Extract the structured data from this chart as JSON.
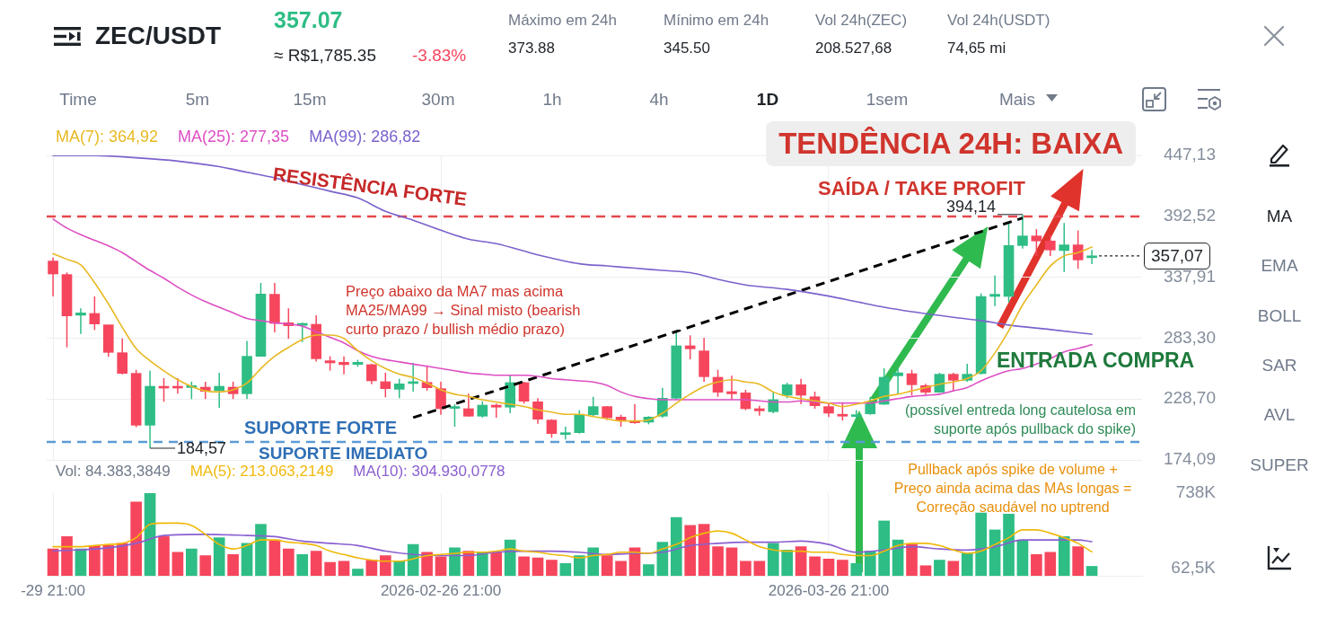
{
  "chart_data": [
    {
      "type": "other",
      "title": "ZEC/USDT",
      "annotations": [
        "357.07",
        "≈ R$1,785.35",
        "-3.83%",
        "Máximo em 24h",
        "373.88",
        "Mínimo em 24h",
        "345.50",
        "Vol 24h(ZEC)",
        "208.527,68",
        "Vol 24h(USDT)",
        "74,65 mi",
        "Time",
        "5m",
        "15m",
        "30m",
        "1h",
        "4h",
        "1D",
        "1sem",
        "Mais",
        "MA",
        "EMA",
        "BOLL",
        "SAR",
        "AVL",
        "SUPER"
      ]
    },
    {
      "type": "candlestick",
      "x": [
        "2026-01-29T21:00",
        "2026-01-30T21:00",
        "2026-01-31T21:00",
        "2026-02-01T21:00",
        "2026-02-02T21:00",
        "2026-02-03T21:00",
        "2026-02-04T21:00",
        "2026-02-05T21:00",
        "2026-02-06T21:00",
        "2026-02-07T21:00",
        "2026-02-08T21:00",
        "2026-02-09T21:00",
        "2026-02-10T21:00",
        "2026-02-11T21:00",
        "2026-02-12T21:00",
        "2026-02-13T21:00",
        "2026-02-14T21:00",
        "2026-02-15T21:00",
        "2026-02-16T21:00",
        "2026-02-17T21:00",
        "2026-02-18T21:00",
        "2026-02-19T21:00",
        "2026-02-20T21:00",
        "2026-02-21T21:00",
        "2026-02-22T21:00",
        "2026-02-23T21:00",
        "2026-02-24T21:00",
        "2026-02-25T21:00",
        "2026-02-26T21:00",
        "2026-02-27T21:00",
        "2026-02-28T21:00",
        "2026-03-01T21:00",
        "2026-03-02T21:00",
        "2026-03-03T21:00",
        "2026-03-04T21:00",
        "2026-03-05T21:00",
        "2026-03-06T21:00",
        "2026-03-07T21:00",
        "2026-03-08T21:00",
        "2026-03-09T21:00",
        "2026-03-10T21:00",
        "2026-03-11T21:00",
        "2026-03-12T21:00",
        "2026-03-13T21:00",
        "2026-03-14T21:00",
        "2026-03-15T21:00",
        "2026-03-16T21:00",
        "2026-03-17T21:00",
        "2026-03-18T21:00",
        "2026-03-19T21:00",
        "2026-03-20T21:00",
        "2026-03-21T21:00",
        "2026-03-22T21:00",
        "2026-03-23T21:00",
        "2026-03-24T21:00",
        "2026-03-25T21:00",
        "2026-03-26T21:00",
        "2026-03-27T21:00",
        "2026-03-28T21:00",
        "2026-03-29T21:00",
        "2026-03-30T21:00",
        "2026-03-31T21:00",
        "2026-04-01T21:00",
        "2026-04-02T21:00",
        "2026-04-03T21:00",
        "2026-04-04T21:00",
        "2026-04-05T21:00",
        "2026-04-06T21:00",
        "2026-04-07T21:00",
        "2026-04-08T21:00",
        "2026-04-09T21:00",
        "2026-04-10T21:00",
        "2026-04-11T21:00",
        "2026-04-12T21:00",
        "2026-04-13T21:00",
        "2026-04-14T21:00"
      ],
      "ohlc": [
        [
          352.4,
          355.6,
          320.7,
          340.8
        ],
        [
          340.3,
          342.2,
          275.0,
          303.2
        ],
        [
          303.8,
          310.0,
          287.1,
          305.9
        ],
        [
          305.4,
          320.7,
          290.6,
          296.0
        ],
        [
          295.2,
          295.2,
          266.5,
          270.5
        ],
        [
          270.2,
          283.1,
          250.9,
          251.7
        ],
        [
          251.7,
          254.9,
          203.4,
          205.2
        ],
        [
          205.2,
          254.1,
          184.57,
          240.1
        ],
        [
          240.1,
          247.4,
          226.2,
          238.5
        ],
        [
          240.1,
          247.4,
          233.4,
          238.5
        ],
        [
          239.0,
          244.2,
          228.6,
          240.7
        ],
        [
          239.3,
          244.2,
          228.6,
          235.6
        ],
        [
          236.1,
          252.2,
          220.8,
          240.1
        ],
        [
          239.3,
          244.2,
          228.6,
          233.4
        ],
        [
          233.4,
          280.9,
          228.6,
          267.0
        ],
        [
          267.0,
          332.8,
          267.0,
          322.9
        ],
        [
          322.6,
          332.8,
          288.5,
          296.5
        ],
        [
          297.1,
          310.0,
          282.6,
          294.4
        ],
        [
          294.7,
          297.1,
          279.9,
          296.5
        ],
        [
          295.7,
          303.8,
          262.2,
          264.8
        ],
        [
          263.0,
          267.0,
          254.1,
          261.1
        ],
        [
          261.6,
          267.0,
          250.9,
          259.5
        ],
        [
          259.7,
          263.8,
          257.6,
          261.6
        ],
        [
          259.5,
          260.3,
          242.0,
          245.0
        ],
        [
          244.2,
          252.2,
          230.2,
          238.0
        ],
        [
          237.4,
          246.8,
          229.4,
          242.3
        ],
        [
          242.6,
          261.1,
          235.3,
          244.2
        ],
        [
          243.6,
          258.9,
          236.1,
          238.8
        ],
        [
          238.0,
          244.2,
          214.6,
          220.0
        ],
        [
          220.3,
          224.0,
          203.9,
          221.9
        ],
        [
          220.0,
          233.4,
          212.7,
          213.3
        ],
        [
          213.3,
          226.7,
          211.9,
          223.2
        ],
        [
          223.2,
          224.6,
          211.9,
          221.4
        ],
        [
          221.4,
          250.3,
          216.0,
          243.4
        ],
        [
          243.4,
          244.2,
          224.6,
          226.7
        ],
        [
          226.2,
          229.4,
          206.6,
          210.6
        ],
        [
          209.8,
          210.6,
          194.0,
          197.7
        ],
        [
          196.9,
          203.9,
          192.4,
          198.5
        ],
        [
          198.5,
          218.7,
          197.7,
          214.6
        ],
        [
          214.6,
          230.7,
          213.3,
          221.9
        ],
        [
          221.9,
          222.5,
          210.0,
          211.9
        ],
        [
          212.5,
          214.6,
          203.9,
          209.3
        ],
        [
          209.0,
          224.0,
          206.5,
          207.4
        ],
        [
          207.9,
          213.3,
          206.0,
          212.5
        ],
        [
          213.3,
          238.8,
          211.9,
          229.4
        ],
        [
          229.4,
          289.0,
          228.1,
          276.4
        ],
        [
          276.4,
          285.8,
          264.3,
          273.7
        ],
        [
          271.8,
          283.6,
          244.2,
          248.7
        ],
        [
          248.2,
          254.9,
          230.7,
          234.8
        ],
        [
          235.3,
          249.5,
          228.1,
          233.4
        ],
        [
          234.2,
          236.9,
          218.7,
          220.0
        ],
        [
          220.0,
          222.7,
          213.8,
          218.1
        ],
        [
          217.3,
          234.8,
          216.0,
          228.1
        ],
        [
          232.1,
          243.4,
          229.4,
          241.5
        ],
        [
          241.5,
          246.8,
          224.0,
          232.1
        ],
        [
          230.7,
          235.3,
          220.0,
          222.7
        ],
        [
          221.9,
          225.4,
          212.5,
          216.0
        ],
        [
          215.0,
          224.6,
          209.3,
          213.3
        ],
        [
          213.0,
          218.7,
          210.6,
          214.6
        ],
        [
          215.4,
          230.7,
          214.6,
          224.0
        ],
        [
          224.0,
          256.2,
          223.5,
          248.2
        ],
        [
          249.5,
          256.2,
          233.4,
          252.2
        ],
        [
          251.4,
          254.9,
          232.1,
          241.5
        ],
        [
          240.7,
          242.3,
          232.6,
          234.8
        ],
        [
          234.8,
          252.2,
          234.2,
          250.9
        ],
        [
          250.9,
          252.2,
          236.1,
          245.5
        ],
        [
          245.5,
          260.3,
          244.2,
          250.9
        ],
        [
          251.4,
          323.4,
          250.9,
          320.7
        ],
        [
          320.7,
          339.5,
          312.1,
          322.6
        ],
        [
          320.7,
          386.5,
          315.3,
          366.3
        ],
        [
          366.3,
          394.14,
          363.6,
          374.9
        ],
        [
          374.9,
          381.1,
          356.9,
          370.4
        ],
        [
          370.4,
          375.7,
          356.9,
          362.3
        ],
        [
          361.8,
          386.5,
          342.7,
          366.9
        ],
        [
          366.9,
          379.8,
          345.4,
          353.4
        ],
        [
          355.4,
          362.3,
          349.7,
          357.07
        ]
      ],
      "colors": [
        "#f6465d",
        "#f6465d",
        "#2ebd85",
        "#f6465d",
        "#f6465d",
        "#f6465d",
        "#f6465d",
        "#2ebd85",
        "#f6465d",
        "#f6465d",
        "#2ebd85",
        "#f6465d",
        "#2ebd85",
        "#f6465d",
        "#2ebd85",
        "#2ebd85",
        "#f6465d",
        "#f6465d",
        "#2ebd85",
        "#f6465d",
        "#f6465d",
        "#f6465d",
        "#2ebd85",
        "#f6465d",
        "#f6465d",
        "#2ebd85",
        "#2ebd85",
        "#f6465d",
        "#f6465d",
        "#2ebd85",
        "#f6465d",
        "#2ebd85",
        "#f6465d",
        "#2ebd85",
        "#f6465d",
        "#f6465d",
        "#f6465d",
        "#2ebd85",
        "#2ebd85",
        "#2ebd85",
        "#f6465d",
        "#f6465d",
        "#f6465d",
        "#2ebd85",
        "#2ebd85",
        "#2ebd85",
        "#f6465d",
        "#f6465d",
        "#f6465d",
        "#f6465d",
        "#f6465d",
        "#f6465d",
        "#2ebd85",
        "#2ebd85",
        "#f6465d",
        "#f6465d",
        "#f6465d",
        "#f6465d",
        "#2ebd85",
        "#2ebd85",
        "#2ebd85",
        "#2ebd85",
        "#f6465d",
        "#f6465d",
        "#2ebd85",
        "#f6465d",
        "#2ebd85",
        "#2ebd85",
        "#2ebd85",
        "#2ebd85",
        "#2ebd85",
        "#f6465d",
        "#f6465d",
        "#2ebd85",
        "#f6465d",
        "#2ebd85"
      ],
      "series": [
        {
          "name": "MA(7): 364,92",
          "type": "line",
          "color": "#e8b923",
          "values": [
            359,
            354,
            349,
            333,
            314,
            293,
            274,
            263,
            254,
            246,
            240,
            236,
            235,
            237,
            243,
            256,
            267,
            275,
            282,
            286,
            286,
            283,
            272,
            263,
            256,
            251,
            248,
            243,
            237,
            233,
            231,
            228,
            226,
            224,
            222,
            219,
            217,
            215,
            215,
            213,
            211,
            209,
            209,
            210,
            216,
            225,
            233,
            240,
            244,
            246,
            244,
            242,
            235,
            231,
            229,
            227,
            225,
            222,
            224,
            227,
            231,
            233,
            236,
            239,
            242,
            244,
            247,
            254,
            270,
            290,
            313,
            331,
            348,
            357,
            360,
            364.92
          ]
        },
        {
          "name": "MA(25): 277,35",
          "type": "line",
          "color": "#dd4fc4",
          "values": [
            390,
            382,
            376,
            371,
            366,
            360,
            352,
            344,
            337,
            329,
            322,
            316,
            311,
            306,
            301,
            299,
            297,
            296,
            294,
            289,
            284,
            279,
            272,
            267,
            264,
            262,
            260,
            258,
            256,
            254,
            252,
            251,
            250,
            250,
            250,
            249,
            247,
            246,
            245,
            244,
            241,
            235,
            231,
            229,
            228,
            228,
            228,
            228,
            228,
            228,
            228,
            227,
            226,
            226,
            227,
            226,
            225,
            225,
            225,
            225,
            227,
            229,
            231,
            232,
            233,
            236,
            239,
            245,
            250,
            254,
            256,
            260,
            265,
            271,
            274,
            277.35
          ]
        },
        {
          "name": "MA(99): 286,82",
          "type": "line",
          "color": "#7b62cc",
          "x": [
            "2026-01-29T21:00",
            "2026-02-01T21:00",
            "2026-02-04T21:00",
            "2026-02-07T21:00",
            "2026-02-10T21:00",
            "2026-02-12T21:00",
            "2026-02-14T21:00",
            "2026-02-16T21:00",
            "2026-02-18T21:00",
            "2026-02-20T21:00",
            "2026-02-22T21:00",
            "2026-02-24T21:00",
            "2026-02-26T21:00",
            "2026-02-28T21:00",
            "2026-03-02T21:00",
            "2026-03-05T21:00",
            "2026-03-08T21:00",
            "2026-03-10T21:00",
            "2026-03-12T21:00",
            "2026-03-14T21:00",
            "2026-03-16T21:00",
            "2026-03-18T21:00",
            "2026-03-20T21:00",
            "2026-03-23T21:00",
            "2026-03-26T21:00",
            "2026-03-28T21:00",
            "2026-03-30T21:00",
            "2026-04-01T21:00",
            "2026-04-04T21:00",
            "2026-04-06T21:00",
            "2026-04-08T21:00",
            "2026-04-11T21:00",
            "2026-04-14T21:00"
          ],
          "values": [
            447,
            447,
            445,
            442,
            437,
            432,
            427,
            421,
            415,
            409,
            397,
            389,
            380,
            372,
            368,
            358,
            350,
            348,
            346,
            344,
            342,
            336,
            331,
            327,
            321,
            316,
            311,
            307,
            302,
            299,
            295,
            291,
            286.82
          ]
        },
        {
          "type": "line",
          "color": "#000000",
          "line_style": "dashed",
          "x": [
            "2026-02-24T21:00",
            "2026-04-09T21:00"
          ],
          "values": [
            212,
            391
          ]
        }
      ],
      "xlim": [
        "2026-01-29T10:00",
        "2026-04-18T12:00"
      ],
      "ylim": [
        174.09,
        447.13
      ],
      "xticks": [
        {
          "value": "2026-01-29T21:00",
          "label": null
        },
        {
          "value": "2026-02-26T21:00",
          "label": null
        },
        {
          "value": "2026-03-26T21:00",
          "label": null
        }
      ],
      "yticks": [
        {
          "value": 174.09,
          "label": "174,09"
        },
        {
          "value": 228.7,
          "label": "228,70"
        },
        {
          "value": 283.3,
          "label": "283,30"
        },
        {
          "value": 337.91,
          "label": "337,91"
        },
        {
          "value": 392.52,
          "label": "392,52"
        },
        {
          "value": 447.13,
          "label": "447,13"
        }
      ],
      "tick_labels": "y",
      "grid": true,
      "legend": "top left",
      "ref_lines": [
        {
          "axis": "y",
          "value": 392.4,
          "label": "RESISTÊNCIA FORTE",
          "color": "#e5484d",
          "line_style": "dashed"
        },
        {
          "axis": "y",
          "value": 190.2,
          "label": "SUPORTE IMEDIATO",
          "color": "#5b9bd5",
          "line_style": "dashed"
        },
        {
          "axis": "y",
          "value": 357.07,
          "label": "357,07",
          "color": "#1e2329",
          "line_style": "dotted"
        }
      ],
      "annotations": [
        {
          "text": "394,14",
          "x": "2026-04-09T21:00",
          "y": 394.14
        },
        {
          "text": "184,57",
          "x": "2026-02-05T21:00",
          "y": 184.57
        },
        "Preço abaixo da MA7 mas acima\nMA25/MA99 → Sinal misto (bearish\ncurto prazo / bullish médio prazo)",
        "SAÍDA / TAKE PROFIT",
        "ENTRADA COMPRA",
        "(possível entreda long cautelosa em\nsuporte após pullback do spike)",
        "TENDÊNCIA 24H: BAIXA",
        "SUPORTE FORTE"
      ]
    },
    {
      "type": "bar",
      "x": [
        "2026-01-29T21:00",
        "2026-01-30T21:00",
        "2026-01-31T21:00",
        "2026-02-01T21:00",
        "2026-02-02T21:00",
        "2026-02-03T21:00",
        "2026-02-04T21:00",
        "2026-02-05T21:00",
        "2026-02-06T21:00",
        "2026-02-07T21:00",
        "2026-02-08T21:00",
        "2026-02-09T21:00",
        "2026-02-10T21:00",
        "2026-02-11T21:00",
        "2026-02-12T21:00",
        "2026-02-13T21:00",
        "2026-02-14T21:00",
        "2026-02-15T21:00",
        "2026-02-16T21:00",
        "2026-02-17T21:00",
        "2026-02-18T21:00",
        "2026-02-19T21:00",
        "2026-02-20T21:00",
        "2026-02-21T21:00",
        "2026-02-22T21:00",
        "2026-02-23T21:00",
        "2026-02-24T21:00",
        "2026-02-25T21:00",
        "2026-02-26T21:00",
        "2026-02-27T21:00",
        "2026-02-28T21:00",
        "2026-03-01T21:00",
        "2026-03-02T21:00",
        "2026-03-03T21:00",
        "2026-03-04T21:00",
        "2026-03-05T21:00",
        "2026-03-06T21:00",
        "2026-03-07T21:00",
        "2026-03-08T21:00",
        "2026-03-09T21:00",
        "2026-03-10T21:00",
        "2026-03-11T21:00",
        "2026-03-12T21:00",
        "2026-03-13T21:00",
        "2026-03-14T21:00",
        "2026-03-15T21:00",
        "2026-03-16T21:00",
        "2026-03-17T21:00",
        "2026-03-18T21:00",
        "2026-03-19T21:00",
        "2026-03-20T21:00",
        "2026-03-21T21:00",
        "2026-03-22T21:00",
        "2026-03-23T21:00",
        "2026-03-24T21:00",
        "2026-03-25T21:00",
        "2026-03-26T21:00",
        "2026-03-27T21:00",
        "2026-03-28T21:00",
        "2026-03-29T21:00",
        "2026-03-30T21:00",
        "2026-03-31T21:00",
        "2026-04-01T21:00",
        "2026-04-02T21:00",
        "2026-04-03T21:00",
        "2026-04-04T21:00",
        "2026-04-05T21:00",
        "2026-04-06T21:00",
        "2026-04-07T21:00",
        "2026-04-08T21:00",
        "2026-04-09T21:00",
        "2026-04-10T21:00",
        "2026-04-11T21:00",
        "2026-04-12T21:00",
        "2026-04-13T21:00",
        "2026-04-14T21:00"
      ],
      "series": [
        {
          "colors": [
            "#f6465d",
            "#f6465d",
            "#2ebd85",
            "#f6465d",
            "#f6465d",
            "#f6465d",
            "#f6465d",
            "#2ebd85",
            "#f6465d",
            "#f6465d",
            "#2ebd85",
            "#f6465d",
            "#2ebd85",
            "#f6465d",
            "#2ebd85",
            "#2ebd85",
            "#f6465d",
            "#f6465d",
            "#2ebd85",
            "#f6465d",
            "#f6465d",
            "#f6465d",
            "#2ebd85",
            "#f6465d",
            "#f6465d",
            "#2ebd85",
            "#2ebd85",
            "#f6465d",
            "#f6465d",
            "#2ebd85",
            "#f6465d",
            "#2ebd85",
            "#f6465d",
            "#2ebd85",
            "#f6465d",
            "#f6465d",
            "#f6465d",
            "#2ebd85",
            "#2ebd85",
            "#2ebd85",
            "#f6465d",
            "#f6465d",
            "#f6465d",
            "#2ebd85",
            "#2ebd85",
            "#2ebd85",
            "#f6465d",
            "#f6465d",
            "#f6465d",
            "#f6465d",
            "#f6465d",
            "#f6465d",
            "#2ebd85",
            "#2ebd85",
            "#f6465d",
            "#f6465d",
            "#f6465d",
            "#f6465d",
            "#2ebd85",
            "#2ebd85",
            "#2ebd85",
            "#2ebd85",
            "#f6465d",
            "#f6465d",
            "#2ebd85",
            "#f6465d",
            "#2ebd85",
            "#2ebd85",
            "#2ebd85",
            "#2ebd85",
            "#2ebd85",
            "#f6465d",
            "#f6465d",
            "#2ebd85",
            "#f6465d",
            "#2ebd85"
          ],
          "values": [
            240000,
            350000,
            240000,
            270000,
            270000,
            290000,
            660000,
            738000,
            350000,
            210000,
            240000,
            180000,
            340000,
            190000,
            290000,
            460000,
            320000,
            240000,
            190000,
            220000,
            120000,
            130000,
            60000,
            140000,
            180000,
            130000,
            280000,
            210000,
            170000,
            250000,
            220000,
            210000,
            210000,
            320000,
            170000,
            160000,
            140000,
            110000,
            180000,
            250000,
            180000,
            130000,
            250000,
            100000,
            300000,
            520000,
            450000,
            460000,
            260000,
            250000,
            130000,
            130000,
            290000,
            230000,
            260000,
            170000,
            150000,
            140000,
            110000,
            220000,
            490000,
            320000,
            280000,
            90000,
            140000,
            130000,
            200000,
            560000,
            410000,
            550000,
            320000,
            190000,
            210000,
            350000,
            260000,
            84383
          ]
        },
        {
          "name": "MA(5): 213.063,2149",
          "type": "line",
          "color": "#f0b90b",
          "values": [
            260000,
            260000,
            260000,
            270000,
            280000,
            290000,
            340000,
            460000,
            470000,
            470000,
            450000,
            370000,
            280000,
            240000,
            270000,
            320000,
            320000,
            300000,
            290000,
            270000,
            220000,
            190000,
            160000,
            140000,
            130000,
            130000,
            150000,
            180000,
            190000,
            200000,
            210000,
            210000,
            220000,
            240000,
            220000,
            210000,
            190000,
            180000,
            160000,
            180000,
            190000,
            210000,
            210000,
            200000,
            240000,
            280000,
            340000,
            380000,
            400000,
            380000,
            320000,
            260000,
            230000,
            220000,
            220000,
            210000,
            210000,
            190000,
            180000,
            180000,
            220000,
            270000,
            290000,
            290000,
            270000,
            230000,
            200000,
            220000,
            280000,
            340000,
            410000,
            410000,
            380000,
            340000,
            290000,
            213063
          ]
        },
        {
          "name": "MA(10): 304.930,0778",
          "type": "line",
          "color": "#8a5fd0",
          "x": [
            "2026-01-29T21:00",
            "2026-02-02T21:00",
            "2026-02-04T21:00",
            "2026-02-06T21:00",
            "2026-02-09T21:00",
            "2026-02-12T21:00",
            "2026-02-14T21:00",
            "2026-02-16T21:00",
            "2026-02-18T21:00",
            "2026-02-20T21:00",
            "2026-02-22T21:00",
            "2026-02-24T21:00",
            "2026-02-26T21:00",
            "2026-02-28T21:00",
            "2026-03-02T21:00",
            "2026-03-04T21:00",
            "2026-03-06T21:00",
            "2026-03-08T21:00",
            "2026-03-10T21:00",
            "2026-03-12T21:00",
            "2026-03-14T21:00",
            "2026-03-16T21:00",
            "2026-03-18T21:00",
            "2026-03-20T21:00",
            "2026-03-22T21:00",
            "2026-03-24T21:00",
            "2026-03-26T21:00",
            "2026-03-28T21:00",
            "2026-03-30T21:00",
            "2026-04-01T21:00",
            "2026-04-03T21:00",
            "2026-04-05T21:00",
            "2026-04-07T21:00",
            "2026-04-09T21:00",
            "2026-04-11T21:00",
            "2026-04-13T21:00",
            "2026-04-14T21:00"
          ],
          "values": [
            220000,
            250000,
            290000,
            360000,
            370000,
            360000,
            350000,
            310000,
            290000,
            270000,
            220000,
            190000,
            180000,
            180000,
            210000,
            220000,
            220000,
            210000,
            190000,
            200000,
            210000,
            270000,
            290000,
            300000,
            300000,
            310000,
            280000,
            210000,
            230000,
            260000,
            240000,
            230000,
            260000,
            320000,
            320000,
            320000,
            304930
          ]
        }
      ],
      "xlim": [
        "2026-01-29T10:00",
        "2026-04-18T12:00"
      ],
      "ylim": [
        0,
        738000
      ],
      "xticks": [
        {
          "value": "2026-01-29T21:00",
          "label": "-29 21:00"
        },
        {
          "value": "2026-02-26T21:00",
          "label": "2026-02-26 21:00"
        },
        {
          "value": "2026-03-26T21:00",
          "label": "2026-03-26 21:00"
        }
      ],
      "yticks": [
        {
          "value": 62500,
          "label": "62,5K"
        },
        {
          "value": 738000,
          "label": "738K"
        }
      ],
      "grid": "x",
      "legend": "top left",
      "annotations": [
        "Vol: 84.383,3849",
        "Pullback após spike de volume +\nPreço ainda acima das MAs longas =\nCorreção saudável no uptrend"
      ]
    }
  ]
}
